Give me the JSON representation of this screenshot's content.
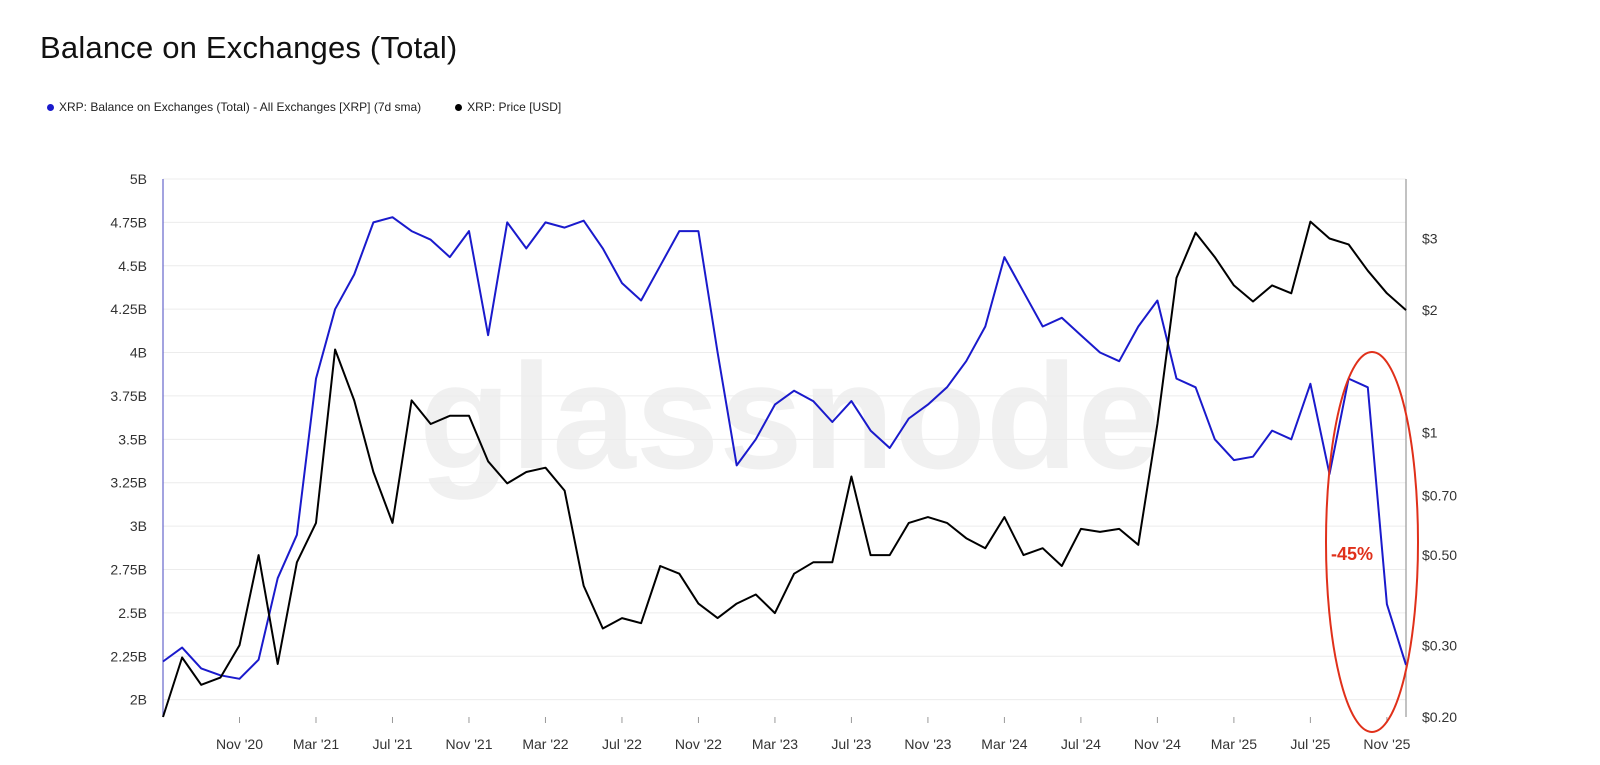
{
  "page": {
    "title": "Balance on Exchanges (Total)"
  },
  "legend": [
    {
      "label": "XRP: Balance on Exchanges (Total) - All Exchanges [XRP] (7d sma)",
      "color": "#1a1acc"
    },
    {
      "label": "XRP: Price [USD]",
      "color": "#000000"
    }
  ],
  "watermark": "glassnode",
  "annotation": {
    "label": "-45%",
    "color": "#e0301a"
  },
  "chart_data": {
    "type": "line",
    "title": "Balance on Exchanges (Total)",
    "left_axis": {
      "ylim": [
        1900000000,
        5000000000
      ],
      "ticks": [
        {
          "v": 5000000000,
          "label": "5B"
        },
        {
          "v": 4750000000,
          "label": "4.75B"
        },
        {
          "v": 4500000000,
          "label": "4.5B"
        },
        {
          "v": 4250000000,
          "label": "4.25B"
        },
        {
          "v": 4000000000,
          "label": "4B"
        },
        {
          "v": 3750000000,
          "label": "3.75B"
        },
        {
          "v": 3500000000,
          "label": "3.5B"
        },
        {
          "v": 3250000000,
          "label": "3.25B"
        },
        {
          "v": 3000000000,
          "label": "3B"
        },
        {
          "v": 2750000000,
          "label": "2.75B"
        },
        {
          "v": 2500000000,
          "label": "2.5B"
        },
        {
          "v": 2250000000,
          "label": "2.25B"
        },
        {
          "v": 2000000000,
          "label": "2B"
        }
      ]
    },
    "right_axis": {
      "scale": "log",
      "ylim": [
        0.2,
        4.2
      ],
      "ticks": [
        {
          "v": 3,
          "label": "$3"
        },
        {
          "v": 2,
          "label": "$2"
        },
        {
          "v": 1,
          "label": "$1"
        },
        {
          "v": 0.7,
          "label": "$0.70"
        },
        {
          "v": 0.5,
          "label": "$0.50"
        },
        {
          "v": 0.3,
          "label": "$0.30"
        },
        {
          "v": 0.2,
          "label": "$0.20"
        }
      ]
    },
    "x_axis": {
      "range": [
        "2020-07",
        "2025-12"
      ],
      "ticks": [
        {
          "v": "2020-11",
          "label": "Nov '20"
        },
        {
          "v": "2021-03",
          "label": "Mar '21"
        },
        {
          "v": "2021-07",
          "label": "Jul '21"
        },
        {
          "v": "2021-11",
          "label": "Nov '21"
        },
        {
          "v": "2022-03",
          "label": "Mar '22"
        },
        {
          "v": "2022-07",
          "label": "Jul '22"
        },
        {
          "v": "2022-11",
          "label": "Nov '22"
        },
        {
          "v": "2023-03",
          "label": "Mar '23"
        },
        {
          "v": "2023-07",
          "label": "Jul '23"
        },
        {
          "v": "2023-11",
          "label": "Nov '23"
        },
        {
          "v": "2024-03",
          "label": "Mar '24"
        },
        {
          "v": "2024-07",
          "label": "Jul '24"
        },
        {
          "v": "2024-11",
          "label": "Nov '24"
        },
        {
          "v": "2025-03",
          "label": "Mar '25"
        },
        {
          "v": "2025-07",
          "label": "Jul '25"
        },
        {
          "v": "2025-11",
          "label": "Nov '25"
        }
      ]
    },
    "series": [
      {
        "name": "XRP: Balance on Exchanges (Total) - All Exchanges [XRP] (7d sma)",
        "axis": "left",
        "color": "#1a1acc",
        "x": [
          "2020-07",
          "2020-08",
          "2020-09",
          "2020-10",
          "2020-11",
          "2020-12",
          "2021-01",
          "2021-02",
          "2021-03",
          "2021-04",
          "2021-05",
          "2021-06",
          "2021-07",
          "2021-08",
          "2021-09",
          "2021-10",
          "2021-11",
          "2021-12",
          "2022-01",
          "2022-02",
          "2022-03",
          "2022-04",
          "2022-05",
          "2022-06",
          "2022-07",
          "2022-08",
          "2022-09",
          "2022-10",
          "2022-11",
          "2022-12",
          "2023-01",
          "2023-02",
          "2023-03",
          "2023-04",
          "2023-05",
          "2023-06",
          "2023-07",
          "2023-08",
          "2023-09",
          "2023-10",
          "2023-11",
          "2023-12",
          "2024-01",
          "2024-02",
          "2024-03",
          "2024-04",
          "2024-05",
          "2024-06",
          "2024-07",
          "2024-08",
          "2024-09",
          "2024-10",
          "2024-11",
          "2024-12",
          "2025-01",
          "2025-02",
          "2025-03",
          "2025-04",
          "2025-05",
          "2025-06",
          "2025-07",
          "2025-08",
          "2025-09",
          "2025-10",
          "2025-11",
          "2025-12"
        ],
        "values": [
          2220000000,
          2300000000,
          2180000000,
          2140000000,
          2120000000,
          2230000000,
          2700000000,
          2950000000,
          3850000000,
          4250000000,
          4450000000,
          4750000000,
          4780000000,
          4700000000,
          4650000000,
          4550000000,
          4700000000,
          4100000000,
          4750000000,
          4600000000,
          4750000000,
          4720000000,
          4760000000,
          4600000000,
          4400000000,
          4300000000,
          4500000000,
          4700000000,
          4700000000,
          4000000000,
          3350000000,
          3500000000,
          3700000000,
          3780000000,
          3720000000,
          3600000000,
          3720000000,
          3550000000,
          3450000000,
          3620000000,
          3700000000,
          3800000000,
          3950000000,
          4150000000,
          4550000000,
          4350000000,
          4150000000,
          4200000000,
          4100000000,
          4000000000,
          3950000000,
          4150000000,
          4300000000,
          3850000000,
          3800000000,
          3500000000,
          3380000000,
          3400000000,
          3550000000,
          3500000000,
          3820000000,
          3300000000,
          3850000000,
          3800000000,
          2550000000,
          2200000000
        ]
      },
      {
        "name": "XRP: Price [USD]",
        "axis": "right",
        "color": "#000000",
        "x": [
          "2020-07",
          "2020-08",
          "2020-09",
          "2020-10",
          "2020-11",
          "2020-12",
          "2021-01",
          "2021-02",
          "2021-03",
          "2021-04",
          "2021-05",
          "2021-06",
          "2021-07",
          "2021-08",
          "2021-09",
          "2021-10",
          "2021-11",
          "2021-12",
          "2022-01",
          "2022-02",
          "2022-03",
          "2022-04",
          "2022-05",
          "2022-06",
          "2022-07",
          "2022-08",
          "2022-09",
          "2022-10",
          "2022-11",
          "2022-12",
          "2023-01",
          "2023-02",
          "2023-03",
          "2023-04",
          "2023-05",
          "2023-06",
          "2023-07",
          "2023-08",
          "2023-09",
          "2023-10",
          "2023-11",
          "2023-12",
          "2024-01",
          "2024-02",
          "2024-03",
          "2024-04",
          "2024-05",
          "2024-06",
          "2024-07",
          "2024-08",
          "2024-09",
          "2024-10",
          "2024-11",
          "2024-12",
          "2025-01",
          "2025-02",
          "2025-03",
          "2025-04",
          "2025-05",
          "2025-06",
          "2025-07",
          "2025-08",
          "2025-09",
          "2025-10",
          "2025-11",
          "2025-12"
        ],
        "values": [
          0.2,
          0.28,
          0.24,
          0.25,
          0.3,
          0.5,
          0.27,
          0.48,
          0.6,
          1.6,
          1.2,
          0.8,
          0.6,
          1.2,
          1.05,
          1.1,
          1.1,
          0.85,
          0.75,
          0.8,
          0.82,
          0.72,
          0.42,
          0.33,
          0.35,
          0.34,
          0.47,
          0.45,
          0.38,
          0.35,
          0.38,
          0.4,
          0.36,
          0.45,
          0.48,
          0.48,
          0.78,
          0.5,
          0.5,
          0.6,
          0.62,
          0.6,
          0.55,
          0.52,
          0.62,
          0.5,
          0.52,
          0.47,
          0.58,
          0.57,
          0.58,
          0.53,
          1.05,
          2.4,
          3.1,
          2.7,
          2.3,
          2.1,
          2.3,
          2.2,
          3.3,
          3.0,
          2.9,
          2.5,
          2.2,
          2.0
        ]
      }
    ]
  }
}
